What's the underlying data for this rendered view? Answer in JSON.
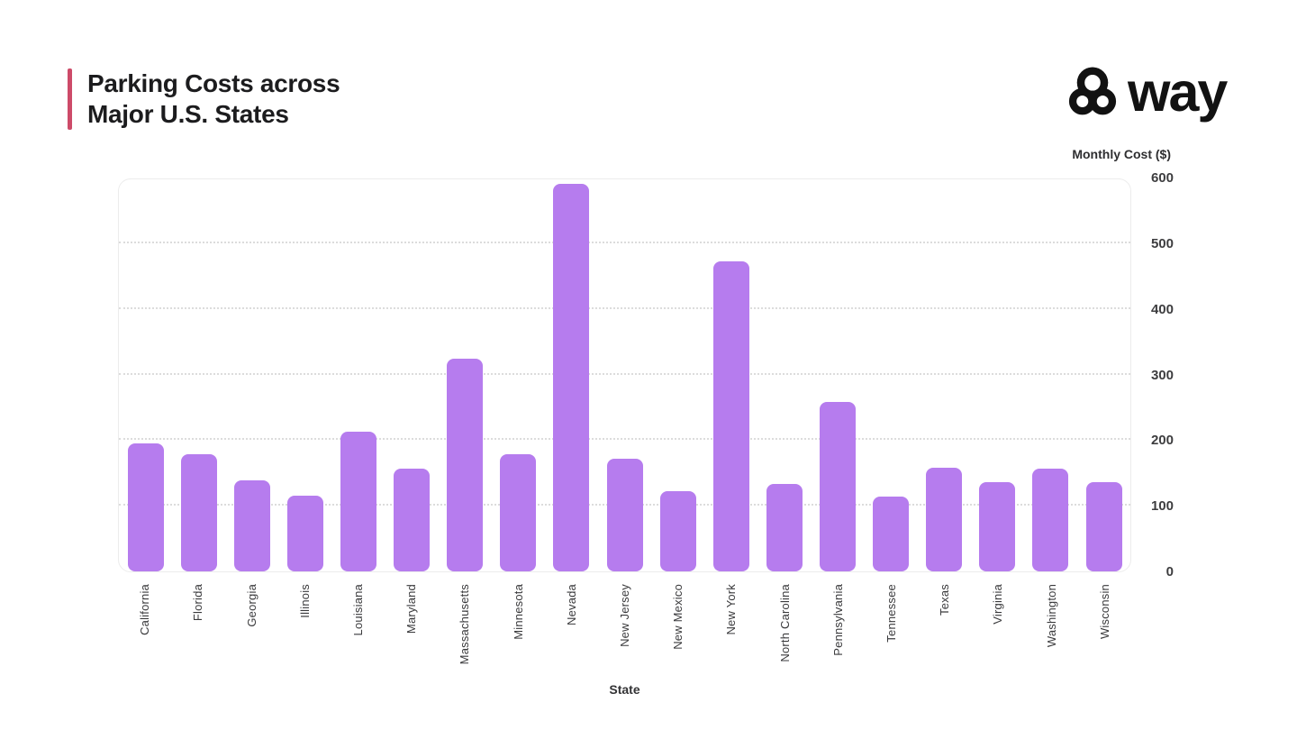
{
  "header": {
    "title_line1": "Parking Costs across",
    "title_line2": "Major U.S. States",
    "accent_color": "#cd4b69"
  },
  "logo": {
    "text": "way",
    "color": "#121212"
  },
  "chart_data": {
    "type": "bar",
    "title": "Parking Costs across Major U.S. States",
    "xlabel": "State",
    "ylabel": "Monthly Cost ($)",
    "ylim": [
      0,
      600
    ],
    "yticks": [
      0,
      100,
      200,
      300,
      400,
      500,
      600
    ],
    "grid": "horizontal-dotted",
    "legend": "none",
    "bar_color": "#b67cee",
    "categories": [
      "California",
      "Florida",
      "Georgia",
      "Illinois",
      "Louisiana",
      "Maryland",
      "Massachusetts",
      "Minnesota",
      "Nevada",
      "New Jersey",
      "New Mexico",
      "New York",
      "North Carolina",
      "Pennsylvania",
      "Tennessee",
      "Texas",
      "Virginia",
      "Washington",
      "Wisconsin"
    ],
    "values": [
      195,
      178,
      139,
      116,
      213,
      157,
      324,
      178,
      590,
      171,
      122,
      472,
      133,
      258,
      114,
      158,
      136,
      157,
      136
    ]
  }
}
